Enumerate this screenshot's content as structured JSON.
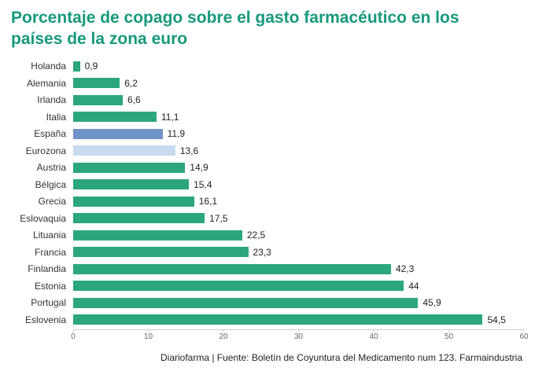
{
  "title": "Porcentaje de copago sobre el gasto farmacéutico en los países de la zona euro",
  "footer": "Diariofarma | Fuente: Boletín de Coyuntura del Medicamento num 123. Farmaindustria",
  "colors": {
    "title": "#17997c",
    "bar_default": "#2ba77b",
    "bar_espana": "#6e93c8",
    "bar_eurozona": "#c8daf0",
    "axis_line": "#cccccc"
  },
  "chart_data": {
    "type": "bar",
    "orientation": "horizontal",
    "title": "Porcentaje de copago sobre el gasto farmacéutico en los países de la zona euro",
    "categories": [
      "Holanda",
      "Alemania",
      "Irlanda",
      "Italia",
      "España",
      "Eurozona",
      "Austria",
      "Bélgica",
      "Grecia",
      "Eslovaquia",
      "Lituania",
      "Francia",
      "Finlandia",
      "Estonia",
      "Portugal",
      "Eslovenia"
    ],
    "values": [
      0.9,
      6.2,
      6.6,
      11.1,
      11.9,
      13.6,
      14.9,
      15.4,
      16.1,
      17.5,
      22.5,
      23.3,
      42.3,
      44,
      45.9,
      54.5
    ],
    "value_labels": [
      "0,9",
      "6,2",
      "6,6",
      "11,1",
      "11,9",
      "13,6",
      "14,9",
      "15,4",
      "16,1",
      "17,5",
      "22,5",
      "23,3",
      "42,3",
      "44",
      "45,9",
      "54,5"
    ],
    "highlights": {
      "España": "#6e93c8",
      "Eurozona": "#c8daf0"
    },
    "default_color": "#2ba77b",
    "xlabel": "",
    "ylabel": "",
    "xlim": [
      0,
      60
    ],
    "xticks": [
      0,
      10,
      20,
      30,
      40,
      50,
      60
    ],
    "grid": false,
    "legend": false
  }
}
